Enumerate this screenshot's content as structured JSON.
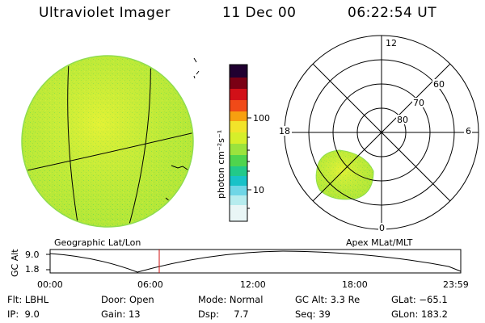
{
  "header": {
    "title": "Ultraviolet Imager",
    "date": "11 Dec 00",
    "time": "06:22:54 UT"
  },
  "colorbar": {
    "axis_label": "photon cm⁻²s⁻¹",
    "ticks": [
      "100",
      "10"
    ]
  },
  "panels": {
    "left_caption": "Geographic Lat/Lon",
    "right_caption": "Apex MLat/MLT"
  },
  "polar_plot": {
    "lat_labels": [
      "60",
      "70",
      "80"
    ],
    "mlt_labels": [
      "12",
      "18",
      "6",
      "0"
    ]
  },
  "timeline": {
    "ylabel": "GC Alt",
    "yticks": [
      "9.0",
      "1.8"
    ],
    "xticks": [
      "00:00",
      "06:00",
      "12:00",
      "18:00",
      "23:59"
    ],
    "marker_hours": 6.38
  },
  "info": {
    "flt": "Flt: LBHL",
    "ip": "IP:  9.0",
    "door": "Door: Open",
    "gain": "Gain: 13",
    "mode": "Mode: Normal",
    "dsp": "Dsp:     7.7",
    "gcalt": "GC Alt: 3.3 Re",
    "seq": "Seq: 39",
    "glat": "GLat: −65.1",
    "glon": "GLon: 183.2"
  },
  "colors": {
    "image_base": "#d6ef2a",
    "image_green": "#6fd94c",
    "marker": "#d01010",
    "outline": "#000000"
  }
}
